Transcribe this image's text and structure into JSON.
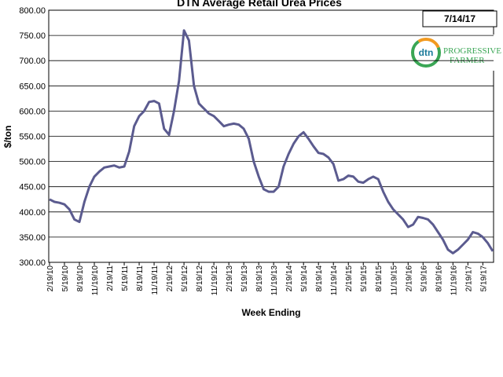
{
  "chart_data": {
    "type": "line",
    "title": "DTN Average Retail Urea Prices",
    "date_label": "7/14/17",
    "logo_text": "dtn",
    "logo_brand": "PROGRESSIVE",
    "logo_brand2": "FARMER",
    "x_label": "Week Ending",
    "y_label": "$/ton",
    "color": "#5b5b8f",
    "grid": true,
    "categories": [
      "2/19/10",
      null,
      null,
      "5/19/10",
      null,
      null,
      "8/19/10",
      null,
      null,
      "11/19/10",
      null,
      null,
      "2/19/11",
      null,
      null,
      "5/19/11",
      null,
      null,
      "8/19/11",
      null,
      null,
      "11/19/11",
      null,
      null,
      "2/19/12",
      null,
      null,
      "5/19/12",
      null,
      null,
      "8/19/12",
      null,
      null,
      "11/19/12",
      null,
      null,
      "2/19/13",
      null,
      null,
      "5/19/13",
      null,
      null,
      "8/19/13",
      null,
      null,
      "11/19/13",
      null,
      null,
      "2/19/14",
      null,
      null,
      "5/19/14",
      null,
      null,
      "8/19/14",
      null,
      null,
      "11/19/14",
      null,
      null,
      "2/19/15",
      null,
      null,
      "5/19/15",
      null,
      null,
      "8/19/15",
      null,
      null,
      "11/19/15",
      null,
      null,
      "2/19/16",
      null,
      null,
      "5/19/16",
      null,
      null,
      "8/19/16",
      null,
      null,
      "11/19/16",
      null,
      null,
      "2/19/17",
      null,
      null,
      "5/19/17",
      null,
      null
    ],
    "values": [
      425,
      420,
      418,
      415,
      405,
      385,
      380,
      420,
      450,
      470,
      480,
      488,
      490,
      492,
      488,
      490,
      520,
      570,
      590,
      600,
      618,
      620,
      615,
      565,
      553,
      600,
      660,
      760,
      740,
      650,
      615,
      605,
      595,
      590,
      580,
      570,
      573,
      575,
      573,
      565,
      545,
      500,
      470,
      445,
      440,
      440,
      450,
      490,
      515,
      535,
      550,
      558,
      545,
      530,
      517,
      515,
      508,
      495,
      462,
      465,
      472,
      470,
      460,
      458,
      465,
      470,
      465,
      440,
      420,
      405,
      395,
      385,
      370,
      375,
      390,
      388,
      385,
      375,
      360,
      345,
      325,
      318,
      325,
      335,
      345,
      360,
      357,
      350,
      338,
      322
    ],
    "ylim": [
      300,
      800
    ],
    "yticks": [
      {
        "value": 300,
        "label": "300.00"
      },
      {
        "value": 350,
        "label": "350.00"
      },
      {
        "value": 400,
        "label": "400.00"
      },
      {
        "value": 450,
        "label": "450.00"
      },
      {
        "value": 500,
        "label": "500.00"
      },
      {
        "value": 550,
        "label": "550.00"
      },
      {
        "value": 600,
        "label": "600.00"
      },
      {
        "value": 650,
        "label": "650.00"
      },
      {
        "value": 700,
        "label": "700.00"
      },
      {
        "value": 750,
        "label": "750.00"
      },
      {
        "value": 800,
        "label": "800.00"
      }
    ]
  }
}
